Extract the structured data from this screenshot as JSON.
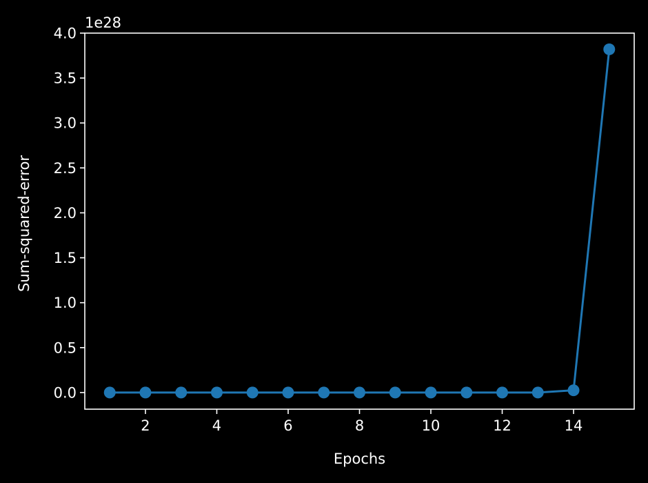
{
  "chart_data": {
    "type": "line",
    "xlabel": "Epochs",
    "ylabel": "Sum-squared-error",
    "y_offset_label": "1e28",
    "y_scale": 1e+28,
    "x": [
      1,
      2,
      3,
      4,
      5,
      6,
      7,
      8,
      9,
      10,
      11,
      12,
      13,
      14,
      15
    ],
    "series": [
      {
        "values": [
          0,
          0,
          0,
          0,
          0,
          0,
          0,
          0,
          0,
          0,
          0,
          0,
          0.0002,
          0.025,
          3.82
        ],
        "color": "#1f77b4",
        "marker": "circle"
      }
    ],
    "xlim": [
      0.3,
      15.7
    ],
    "ylim": [
      -0.185,
      4.0
    ],
    "xticks": [
      2,
      4,
      6,
      8,
      10,
      12,
      14
    ],
    "xtick_labels": [
      "2",
      "4",
      "6",
      "8",
      "10",
      "12",
      "14"
    ],
    "yticks": [
      0.0,
      0.5,
      1.0,
      1.5,
      2.0,
      2.5,
      3.0,
      3.5,
      4.0
    ],
    "ytick_labels": [
      "0.0",
      "0.5",
      "1.0",
      "1.5",
      "2.0",
      "2.5",
      "3.0",
      "3.5",
      "4.0"
    ],
    "grid": false,
    "legend": false,
    "background": "#000000",
    "foreground": "#ffffff"
  }
}
